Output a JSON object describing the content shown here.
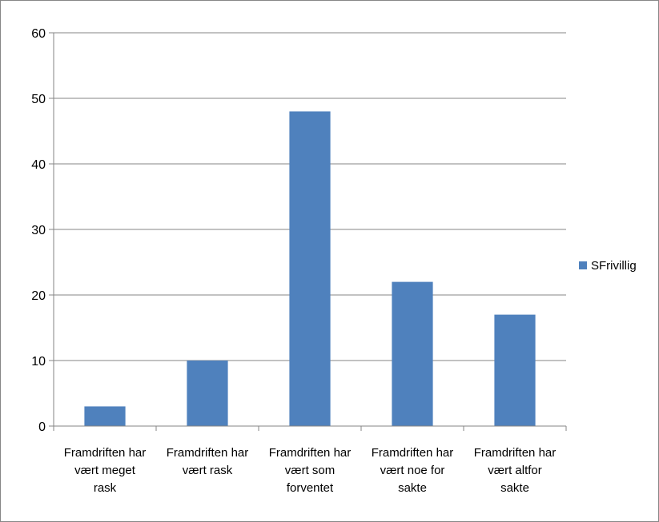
{
  "chart_data": {
    "type": "bar",
    "categories": [
      [
        "Framdriften har",
        "vært meget",
        "rask"
      ],
      [
        "Framdriften har",
        "vært rask"
      ],
      [
        "Framdriften har",
        "vært som",
        "forventet"
      ],
      [
        "Framdriften har",
        "vært noe for",
        "sakte"
      ],
      [
        "Framdriften har",
        "vært altfor",
        "sakte"
      ]
    ],
    "series": [
      {
        "name": "SFrivillig",
        "values": [
          3,
          10,
          48,
          22,
          17
        ]
      }
    ],
    "ylim": [
      0,
      60
    ],
    "yticks": [
      0,
      10,
      20,
      30,
      40,
      50,
      60
    ],
    "grid": true,
    "legend": "right",
    "colors": {
      "bar": "#4f81bd",
      "grid": "#868686",
      "axis": "#868686"
    }
  }
}
